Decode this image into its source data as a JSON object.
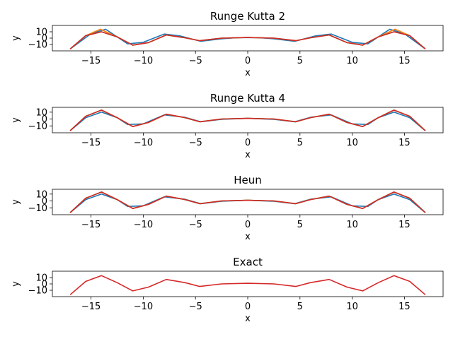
{
  "chart_data": [
    {
      "type": "line",
      "title": "Runge Kutta 2",
      "xlabel": "x",
      "ylabel": "y",
      "xlim": [
        -18.7,
        18.7
      ],
      "ylim": [
        -20,
        20
      ],
      "xticks": [
        -15,
        -10,
        -5,
        0,
        5,
        10,
        15
      ],
      "yticks": [
        10,
        0,
        -10
      ],
      "grid": false,
      "series": [
        {
          "color": "#1f77b4",
          "x": [
            -17,
            -15,
            -13.6,
            -12.5,
            -11.5,
            -10,
            -8,
            -6.5,
            -4.5,
            -2.5,
            -1,
            1,
            2.5,
            4.5,
            6.5,
            8,
            10,
            11.5,
            12.5,
            13.6,
            15,
            17
          ],
          "y": [
            -17,
            7,
            14,
            2,
            -9,
            -6.5,
            6.5,
            3.5,
            -5,
            -1,
            0.8,
            0.8,
            -1,
            -5,
            3.5,
            6.5,
            -6.5,
            -9,
            2,
            14,
            7,
            -17
          ]
        },
        {
          "color": "#ff7f0e",
          "x": [
            -17,
            -15.5,
            -14.1,
            -12.5,
            -11,
            -9.5,
            -7.8,
            -6,
            -4.6,
            -2.5,
            0,
            2.5,
            4.6,
            6,
            7.8,
            9.5,
            11,
            12.5,
            14.1,
            15.5,
            17
          ],
          "y": [
            -17,
            4,
            14,
            2,
            -11,
            -7,
            5,
            0.5,
            -4,
            0,
            1,
            0,
            -4,
            0.5,
            5,
            -7,
            -11,
            2,
            14,
            4,
            -17
          ]
        },
        {
          "color": "#2ca02c",
          "x": [
            -17,
            -15.5,
            -14,
            -12.5,
            -11,
            -9.5,
            -7.8,
            -6,
            -4.6,
            -2.5,
            0,
            2.5,
            4.6,
            6,
            7.8,
            9.5,
            11,
            12.5,
            14,
            15.5,
            17
          ],
          "y": [
            -17,
            4,
            10,
            2,
            -11,
            -7,
            5,
            0.5,
            -4,
            0,
            1,
            0,
            -4,
            0.5,
            5,
            -7,
            -11,
            2,
            10,
            4,
            -17
          ]
        },
        {
          "color": "#d62728",
          "x": [
            -17,
            -15.5,
            -14,
            -12.5,
            -11,
            -9.5,
            -7.8,
            -6,
            -4.6,
            -2.5,
            0,
            2.5,
            4.6,
            6,
            7.8,
            9.5,
            11,
            12.5,
            14,
            15.5,
            17
          ],
          "y": [
            -17,
            4,
            10,
            2,
            -11,
            -7,
            5,
            0.5,
            -4,
            0,
            1,
            0,
            -4,
            0.5,
            5,
            -7,
            -11,
            2,
            10,
            4,
            -17
          ]
        }
      ]
    },
    {
      "type": "line",
      "title": "Runge Kutta 4",
      "xlabel": "x",
      "ylabel": "y",
      "xlim": [
        -18.7,
        18.7
      ],
      "ylim": [
        -20,
        17
      ],
      "xticks": [
        -15,
        -10,
        -5,
        0,
        5,
        10,
        15
      ],
      "yticks": [
        10,
        0,
        -10
      ],
      "grid": false,
      "series": [
        {
          "color": "#1f77b4",
          "x": [
            -17,
            -15.5,
            -14,
            -12.5,
            -11.5,
            -10,
            -8,
            -6,
            -4.5,
            -2.5,
            0,
            2.5,
            4.5,
            6,
            8,
            10,
            11.5,
            12.5,
            14,
            15.5,
            17
          ],
          "y": [
            -17,
            2,
            10,
            2,
            -8,
            -7,
            6,
            2.5,
            -4,
            -0.5,
            1,
            -0.5,
            -4,
            2.5,
            6,
            -7,
            -8,
            2,
            10,
            2,
            -17
          ]
        },
        {
          "color": "#ff7f0e",
          "x": [
            -17,
            -15.5,
            -14,
            -12.5,
            -11,
            -9.5,
            -7.8,
            -6,
            -4.6,
            -2.5,
            0,
            2.5,
            4.6,
            6,
            7.8,
            9.5,
            11,
            12.5,
            14,
            15.5,
            17
          ],
          "y": [
            -17,
            4,
            13,
            2,
            -11,
            -5,
            7,
            2,
            -4,
            0,
            1,
            0,
            -4,
            2,
            7,
            -5,
            -11,
            2,
            13,
            4,
            -17
          ]
        },
        {
          "color": "#2ca02c",
          "x": [
            -17,
            -15.5,
            -14,
            -12.5,
            -11,
            -9.5,
            -7.8,
            -6,
            -4.6,
            -2.5,
            0,
            2.5,
            4.6,
            6,
            7.8,
            9.5,
            11,
            12.5,
            14,
            15.5,
            17
          ],
          "y": [
            -17,
            4,
            13,
            2,
            -11,
            -5,
            7,
            2,
            -4,
            0,
            1,
            0,
            -4,
            2,
            7,
            -5,
            -11,
            2,
            13,
            4,
            -17
          ]
        },
        {
          "color": "#d62728",
          "x": [
            -17,
            -15.5,
            -14,
            -12.5,
            -11,
            -9.5,
            -7.8,
            -6,
            -4.6,
            -2.5,
            0,
            2.5,
            4.6,
            6,
            7.8,
            9.5,
            11,
            12.5,
            14,
            15.5,
            17
          ],
          "y": [
            -17,
            4,
            13,
            2,
            -11,
            -5,
            7,
            2,
            -4,
            0,
            1,
            0,
            -4,
            2,
            7,
            -5,
            -11,
            2,
            13,
            4,
            -17
          ]
        }
      ]
    },
    {
      "type": "line",
      "title": "Heun",
      "xlabel": "x",
      "ylabel": "y",
      "xlim": [
        -18.7,
        18.7
      ],
      "ylim": [
        -20,
        17
      ],
      "xticks": [
        -15,
        -10,
        -5,
        0,
        5,
        10,
        15
      ],
      "yticks": [
        10,
        0,
        -10
      ],
      "grid": false,
      "series": [
        {
          "color": "#1f77b4",
          "x": [
            -17,
            -15.5,
            -14,
            -12.5,
            -11.5,
            -10,
            -8,
            -6,
            -4.5,
            -2.5,
            0,
            2.5,
            4.5,
            6,
            8,
            10,
            11.5,
            12.5,
            14,
            15.5,
            17
          ],
          "y": [
            -17,
            2,
            10,
            2,
            -8,
            -7,
            6,
            2.5,
            -4,
            -0.5,
            1,
            -0.5,
            -4,
            2.5,
            6,
            -7,
            -8,
            2,
            10,
            2,
            -17
          ]
        },
        {
          "color": "#ff7f0e",
          "x": [
            -17,
            -15.5,
            -14,
            -12.5,
            -11,
            -9.5,
            -7.8,
            -6,
            -4.6,
            -2.5,
            0,
            2.5,
            4.6,
            6,
            7.8,
            9.5,
            11,
            12.5,
            14,
            15.5,
            17
          ],
          "y": [
            -17,
            4,
            13,
            2,
            -11,
            -5,
            7,
            2,
            -4,
            0,
            1,
            0,
            -4,
            2,
            7,
            -5,
            -11,
            2,
            13,
            4,
            -17
          ]
        },
        {
          "color": "#2ca02c",
          "x": [
            -17,
            -15.5,
            -14,
            -12.5,
            -11,
            -9.5,
            -7.8,
            -6,
            -4.6,
            -2.5,
            0,
            2.5,
            4.6,
            6,
            7.8,
            9.5,
            11,
            12.5,
            14,
            15.5,
            17
          ],
          "y": [
            -17,
            4,
            13,
            2,
            -11,
            -5,
            7,
            2,
            -4,
            0,
            1,
            0,
            -4,
            2,
            7,
            -5,
            -11,
            2,
            13,
            4,
            -17
          ]
        },
        {
          "color": "#d62728",
          "x": [
            -17,
            -15.5,
            -14,
            -12.5,
            -11,
            -9.5,
            -7.8,
            -6,
            -4.6,
            -2.5,
            0,
            2.5,
            4.6,
            6,
            7.8,
            9.5,
            11,
            12.5,
            14,
            15.5,
            17
          ],
          "y": [
            -17,
            4,
            13,
            2,
            -11,
            -5,
            7,
            2,
            -4,
            0,
            1,
            0,
            -4,
            2,
            7,
            -5,
            -11,
            2,
            13,
            4,
            -17
          ]
        }
      ]
    },
    {
      "type": "line",
      "title": "Exact",
      "xlabel": "x",
      "ylabel": "y",
      "xlim": [
        -18.7,
        18.7
      ],
      "ylim": [
        -20,
        20
      ],
      "xticks": [
        -15,
        -10,
        -5,
        0,
        5,
        10,
        15
      ],
      "yticks": [
        10,
        0,
        -10
      ],
      "grid": false,
      "series": [
        {
          "color": "#d62728",
          "x": [
            -17,
            -15.5,
            -14,
            -12.5,
            -11,
            -9.5,
            -7.8,
            -6,
            -4.6,
            -2.5,
            0,
            2.5,
            4.6,
            6,
            7.8,
            9.5,
            11,
            12.5,
            14,
            15.5,
            17
          ],
          "y": [
            -17,
            4,
            13,
            2,
            -11,
            -5,
            7,
            2,
            -4,
            0,
            1,
            0,
            -4,
            2,
            7,
            -5,
            -11,
            2,
            13,
            4,
            -17
          ]
        }
      ]
    }
  ]
}
